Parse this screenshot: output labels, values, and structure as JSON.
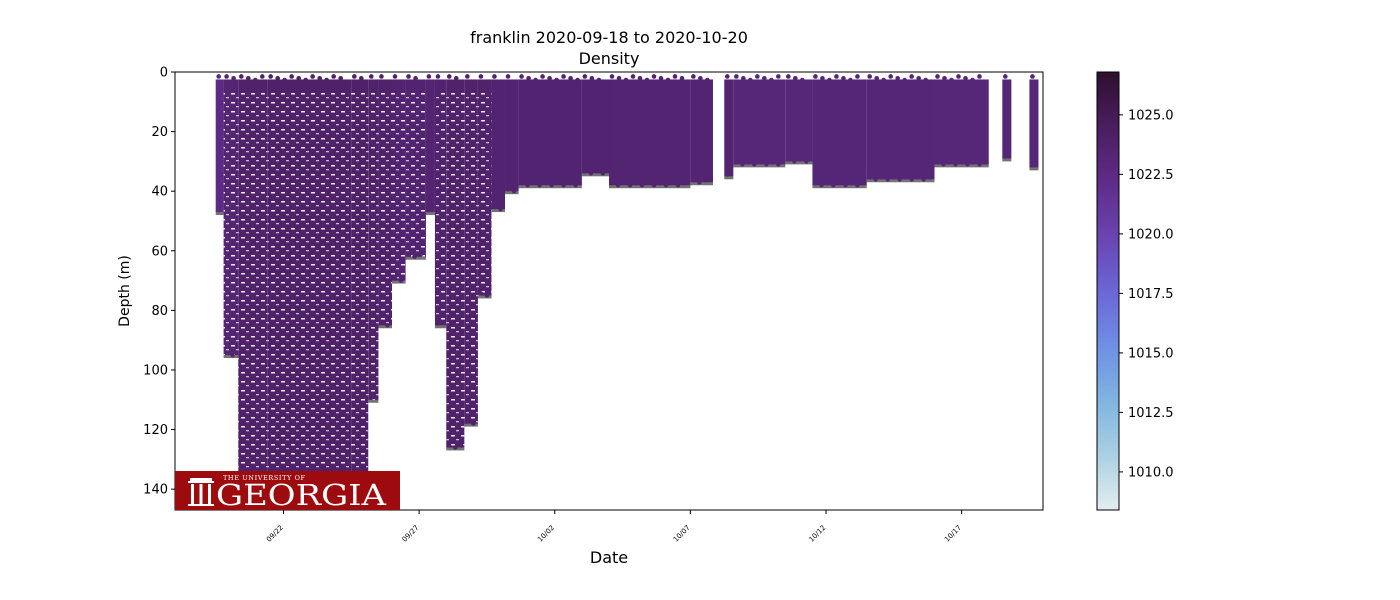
{
  "chart_data": {
    "type": "scatter",
    "title": "franklin 2020-09-18 to 2020-10-20",
    "subtitle": "Density",
    "xlabel": "Date",
    "ylabel": "Depth (m)",
    "x_axis": {
      "type": "date",
      "range": [
        "2020-09-18",
        "2020-10-20"
      ],
      "ticks": [
        "09/22",
        "09/27",
        "10/02",
        "10/07",
        "10/12",
        "10/17"
      ]
    },
    "y_axis": {
      "inverted": true,
      "range": [
        0,
        147
      ],
      "ticks": [
        0,
        20,
        40,
        60,
        80,
        100,
        120,
        140
      ]
    },
    "colorbar": {
      "label": "",
      "range": [
        1008.4,
        1026.8
      ],
      "ticks": [
        "1010.0",
        "1012.5",
        "1015.0",
        "1017.5",
        "1020.0",
        "1022.5",
        "1025.0"
      ],
      "colormap": [
        "#e2eef0",
        "#aad0e2",
        "#7fb4e0",
        "#6f8fe4",
        "#6b66d6",
        "#6a44b0",
        "#5e2c88",
        "#4a1e60",
        "#2e0f2e"
      ]
    },
    "grid": false,
    "profiles": [
      {
        "start": "2020-09-19 12:00",
        "end": "2020-09-19 19:00",
        "max_depth": 47,
        "density": 1022.4
      },
      {
        "start": "2020-09-19 19:00",
        "end": "2020-09-20 08:00",
        "max_depth": 95,
        "density": 1023.4
      },
      {
        "start": "2020-09-20 08:00",
        "end": "2020-09-21 10:00",
        "max_depth": 135,
        "density": 1023.9
      },
      {
        "start": "2020-09-21 10:00",
        "end": "2020-09-24 12:00",
        "max_depth": 136,
        "density": 1024.0
      },
      {
        "start": "2020-09-24 12:00",
        "end": "2020-09-25 03:00",
        "max_depth": 135,
        "density": 1024.0
      },
      {
        "start": "2020-09-25 03:00",
        "end": "2020-09-25 12:00",
        "max_depth": 110,
        "density": 1023.9
      },
      {
        "start": "2020-09-25 12:00",
        "end": "2020-09-26 00:00",
        "max_depth": 85,
        "density": 1023.8
      },
      {
        "start": "2020-09-26 00:00",
        "end": "2020-09-26 12:00",
        "max_depth": 70,
        "density": 1023.6
      },
      {
        "start": "2020-09-26 12:00",
        "end": "2020-09-27 06:00",
        "max_depth": 62,
        "density": 1023.6
      },
      {
        "start": "2020-09-27 06:00",
        "end": "2020-09-27 14:00",
        "max_depth": 47,
        "density": 1023.5
      },
      {
        "start": "2020-09-27 14:00",
        "end": "2020-09-28 00:00",
        "max_depth": 85,
        "density": 1023.7
      },
      {
        "start": "2020-09-28 00:00",
        "end": "2020-09-28 16:00",
        "max_depth": 126,
        "density": 1023.9
      },
      {
        "start": "2020-09-28 16:00",
        "end": "2020-09-29 04:00",
        "max_depth": 118,
        "density": 1023.9
      },
      {
        "start": "2020-09-29 04:00",
        "end": "2020-09-29 16:00",
        "max_depth": 75,
        "density": 1023.8
      },
      {
        "start": "2020-09-29 16:00",
        "end": "2020-09-30 04:00",
        "max_depth": 46,
        "density": 1023.6
      },
      {
        "start": "2020-09-30 04:00",
        "end": "2020-09-30 16:00",
        "max_depth": 40,
        "density": 1023.6
      },
      {
        "start": "2020-09-30 16:00",
        "end": "2020-10-03 00:00",
        "max_depth": 38,
        "density": 1023.6
      },
      {
        "start": "2020-10-03 00:00",
        "end": "2020-10-04 00:00",
        "max_depth": 34,
        "density": 1023.6
      },
      {
        "start": "2020-10-04 00:00",
        "end": "2020-10-07 00:00",
        "max_depth": 38,
        "density": 1023.5
      },
      {
        "start": "2020-10-07 00:00",
        "end": "2020-10-07 20:00",
        "max_depth": 37,
        "density": 1023.5
      },
      {
        "start": "2020-10-08 06:00",
        "end": "2020-10-08 14:00",
        "max_depth": 35,
        "density": 1023.5
      },
      {
        "start": "2020-10-08 14:00",
        "end": "2020-10-10 12:00",
        "max_depth": 31,
        "density": 1023.1
      },
      {
        "start": "2020-10-10 12:00",
        "end": "2020-10-11 12:00",
        "max_depth": 30,
        "density": 1023.1
      },
      {
        "start": "2020-10-11 12:00",
        "end": "2020-10-13 12:00",
        "max_depth": 38,
        "density": 1023.2
      },
      {
        "start": "2020-10-13 12:00",
        "end": "2020-10-16 00:00",
        "max_depth": 36,
        "density": 1023.2
      },
      {
        "start": "2020-10-16 00:00",
        "end": "2020-10-18 00:00",
        "max_depth": 31,
        "density": 1023.1
      },
      {
        "start": "2020-10-18 12:00",
        "end": "2020-10-18 20:00",
        "max_depth": 29,
        "density": 1023.2
      },
      {
        "start": "2020-10-19 12:00",
        "end": "2020-10-19 20:00",
        "max_depth": 32,
        "density": 1023.2
      }
    ]
  },
  "logo": {
    "small_text": "THE UNIVERSITY OF",
    "main_text": "GEORGIA",
    "color": "#9e0b0f"
  }
}
